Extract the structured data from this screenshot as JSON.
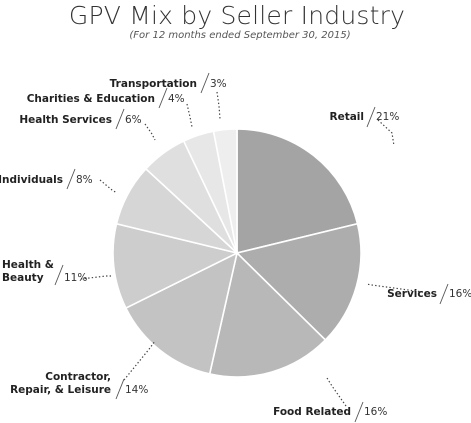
{
  "chart_data": {
    "type": "pie",
    "title": "GPV Mix by Seller Industry",
    "subtitle": "(For 12 months ended September 30, 2015)",
    "slices": [
      {
        "name": "Retail",
        "value": 21,
        "label": "21%",
        "color": "#a4a4a4"
      },
      {
        "name": "Services",
        "value": 16,
        "label": "16%",
        "color": "#adadad"
      },
      {
        "name": "Food Related",
        "value": 16,
        "label": "16%",
        "color": "#b8b8b8"
      },
      {
        "name": "Contractor,\nRepair, & Leisure",
        "value": 14,
        "label": "14%",
        "color": "#c3c3c3"
      },
      {
        "name": "Health &\nBeauty",
        "value": 11,
        "label": "11%",
        "color": "#cdcdcd"
      },
      {
        "name": "Individuals",
        "value": 8,
        "label": "8%",
        "color": "#d6d6d6"
      },
      {
        "name": "Health Services",
        "value": 6,
        "label": "6%",
        "color": "#dfdfdf"
      },
      {
        "name": "Charities & Education",
        "value": 4,
        "label": "4%",
        "color": "#e7e7e7"
      },
      {
        "name": "Transportation",
        "value": 3,
        "label": "3%",
        "color": "#eeeeee"
      }
    ],
    "start_angle": "12 o'clock, clockwise",
    "legend": "none (labels beside slices)"
  }
}
